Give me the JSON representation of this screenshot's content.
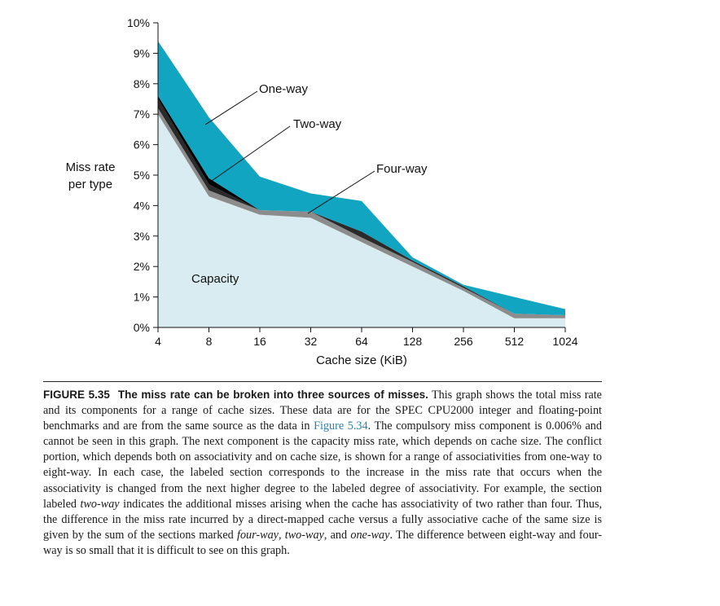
{
  "chart_data": {
    "type": "area",
    "stacked": true,
    "xlabel": "Cache size (KiB)",
    "ylabel_lines": [
      "Miss rate",
      "per type"
    ],
    "categories": [
      "4",
      "8",
      "16",
      "32",
      "64",
      "128",
      "256",
      "512",
      "1024"
    ],
    "yticks": [
      "0%",
      "1%",
      "2%",
      "3%",
      "4%",
      "5%",
      "6%",
      "7%",
      "8%",
      "9%",
      "10%"
    ],
    "ylim": [
      0,
      10
    ],
    "series": [
      {
        "name": "Capacity",
        "values": [
          7.0,
          4.3,
          3.7,
          3.6,
          2.8,
          2.0,
          1.2,
          0.3,
          0.3
        ]
      },
      {
        "name": "Eight-way",
        "values": [
          0.2,
          0.2,
          0.15,
          0.2,
          0.15,
          0.15,
          0.1,
          0.15,
          0.1
        ]
      },
      {
        "name": "Four-way",
        "values": [
          0.3,
          0.2,
          0.0,
          0.0,
          0.2,
          0.05,
          0.05,
          0.0,
          0.0
        ]
      },
      {
        "name": "Two-way",
        "values": [
          0.1,
          0.2,
          0.0,
          0.0,
          0.0,
          0.0,
          0.0,
          0.0,
          0.0
        ]
      },
      {
        "name": "One-way",
        "values": [
          1.8,
          2.0,
          1.1,
          0.6,
          1.0,
          0.1,
          0.05,
          0.55,
          0.2
        ]
      }
    ],
    "annotations": {
      "capacity": "Capacity",
      "one_way": "One-way",
      "two_way": "Two-way",
      "four_way": "Four-way"
    },
    "colors": {
      "capacity": "#d8ecf1",
      "eight_way": "#8c8c8c",
      "four_way": "#2a2a2a",
      "two_way": "#000000",
      "one_way": "#12a5c2"
    }
  },
  "caption": {
    "figure_label": "FIGURE 5.35",
    "title": "The miss rate can be broken into three sources of misses.",
    "text_1": " This graph shows the total miss rate and its components for a range of cache sizes. These data are for the SPEC CPU2000 integer and floating-point benchmarks and are from the same source as the data in ",
    "link": "Figure 5.34",
    "text_2": ". The compulsory miss component is 0.006% and cannot be seen in this graph. The next component is the capacity miss rate, which depends on cache size. The conflict portion, which depends both on associativity and on cache size, is shown for a range of associativities from one-way to eight-way. In each case, the labeled section corresponds to the increase in the miss rate that occurs when the associativity is changed from the next higher degree to the labeled degree of associativity. For example, the section labeled ",
    "em_1": "two-way",
    "text_3": " indicates the additional misses arising when the cache has associativity of two rather than four. Thus, the difference in the miss rate incurred by a direct-mapped cache versus a fully associative cache of the same size is given by the sum of the sections marked ",
    "em_2": "four-way",
    "text_4": ", ",
    "em_3": "two-way",
    "text_5": ", and ",
    "em_4": "one-way",
    "text_6": ". The difference between eight-way and four-way is so small that it is difficult to see on this graph."
  }
}
